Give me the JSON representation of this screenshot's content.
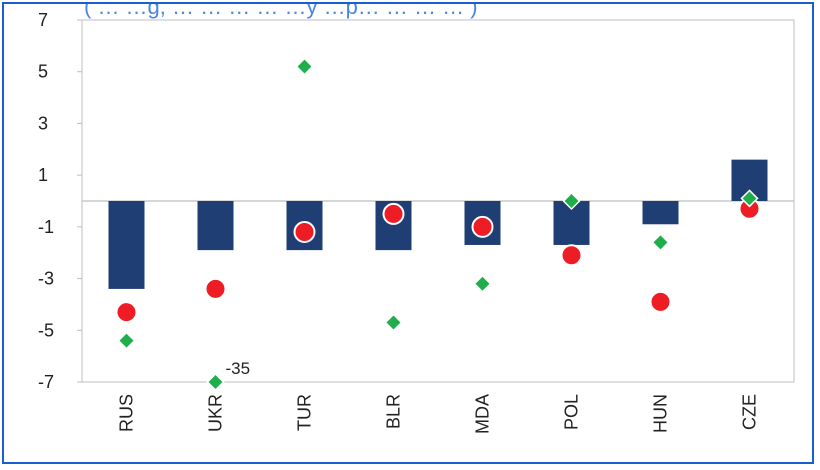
{
  "chart_data": {
    "type": "bar",
    "title": "",
    "xlabel": "",
    "ylabel": "",
    "ylim": [
      -7,
      7
    ],
    "yticks": [
      7,
      5,
      3,
      1,
      -1,
      -3,
      -5,
      -7
    ],
    "grid": false,
    "categories": [
      "RUS",
      "UKR",
      "TUR",
      "BLR",
      "MDA",
      "POL",
      "HUN",
      "CZE"
    ],
    "series": [
      {
        "mark": "bar",
        "color": "#1f3f74",
        "values": [
          -3.4,
          -1.9,
          -1.9,
          -1.9,
          -1.7,
          -1.7,
          -0.9,
          1.6
        ]
      },
      {
        "mark": "circle",
        "color": "#ee1c24",
        "values": [
          -4.3,
          -3.4,
          -1.2,
          -0.5,
          -1.0,
          -2.1,
          -3.9,
          -0.3
        ]
      },
      {
        "mark": "diamond",
        "color": "#1fae4b",
        "values": [
          -5.4,
          -7.0,
          5.2,
          -4.7,
          -3.2,
          0.0,
          -1.6,
          0.1
        ]
      }
    ],
    "annotations": [
      {
        "category": "UKR",
        "text": "-35"
      }
    ]
  },
  "title_fragment": "( … …g,      … … … … …y …p… … … … )"
}
